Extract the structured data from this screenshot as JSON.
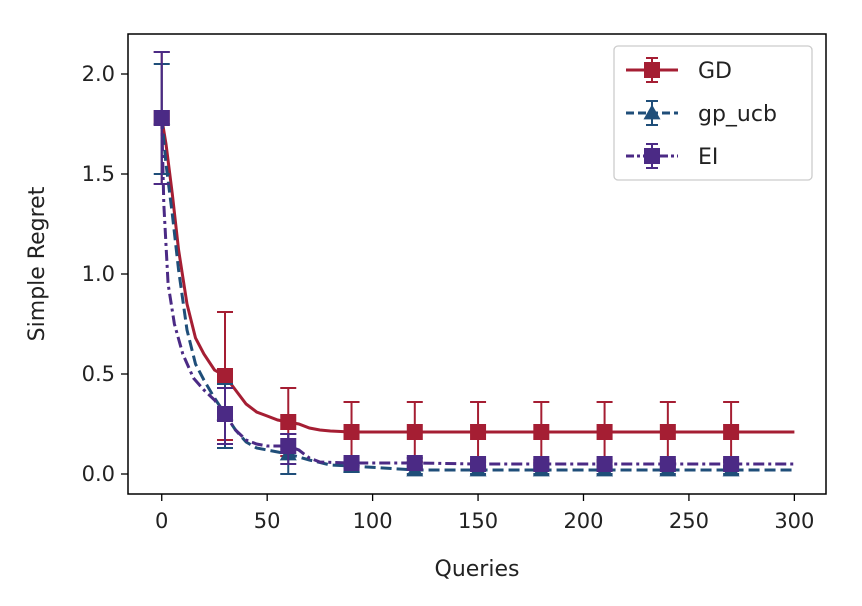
{
  "chart_data": {
    "type": "line",
    "title": "",
    "xlabel": "Queries",
    "ylabel": "Simple Regret",
    "xlim": [
      -16,
      315
    ],
    "ylim": [
      -0.1,
      2.2
    ],
    "xticks": [
      0,
      50,
      100,
      150,
      200,
      250,
      300
    ],
    "yticks": [
      0.0,
      0.5,
      1.0,
      1.5,
      2.0
    ],
    "xtick_labels": [
      "0",
      "50",
      "100",
      "150",
      "200",
      "250",
      "300"
    ],
    "ytick_labels": [
      "0.0",
      "0.5",
      "1.0",
      "1.5",
      "2.0"
    ],
    "grid": false,
    "legend_position": "top-right",
    "series": [
      {
        "name": "GD",
        "color": "#a51e33",
        "dash": "solid",
        "marker": "square",
        "x": [
          0,
          2,
          5,
          8,
          12,
          16,
          20,
          25,
          30,
          35,
          40,
          45,
          50,
          55,
          60,
          65,
          70,
          75,
          80,
          90,
          120,
          150,
          180,
          210,
          240,
          270,
          300
        ],
        "y": [
          1.78,
          1.65,
          1.4,
          1.12,
          0.85,
          0.68,
          0.6,
          0.52,
          0.49,
          0.42,
          0.35,
          0.31,
          0.29,
          0.27,
          0.26,
          0.25,
          0.23,
          0.22,
          0.215,
          0.21,
          0.21,
          0.21,
          0.21,
          0.21,
          0.21,
          0.21,
          0.21
        ],
        "error_x": [
          0,
          30,
          60,
          90,
          120,
          150,
          180,
          210,
          240,
          270
        ],
        "error_y": [
          1.78,
          0.49,
          0.26,
          0.21,
          0.21,
          0.21,
          0.21,
          0.21,
          0.21,
          0.21
        ],
        "error_low": [
          1.45,
          0.17,
          0.09,
          0.06,
          0.06,
          0.06,
          0.06,
          0.06,
          0.06,
          0.06
        ],
        "error_high": [
          2.11,
          0.81,
          0.43,
          0.36,
          0.36,
          0.36,
          0.36,
          0.36,
          0.36,
          0.36
        ]
      },
      {
        "name": "gp_ucb",
        "color": "#1f4e79",
        "dash": "dashed",
        "marker": "triangle",
        "x": [
          0,
          2,
          5,
          8,
          12,
          16,
          20,
          25,
          30,
          35,
          40,
          45,
          50,
          55,
          60,
          70,
          80,
          90,
          120,
          150,
          180,
          210,
          240,
          270,
          300
        ],
        "y": [
          1.78,
          1.55,
          1.3,
          1.02,
          0.72,
          0.55,
          0.47,
          0.38,
          0.3,
          0.22,
          0.16,
          0.13,
          0.12,
          0.11,
          0.1,
          0.07,
          0.045,
          0.04,
          0.02,
          0.02,
          0.02,
          0.02,
          0.02,
          0.02,
          0.02
        ],
        "error_x": [
          0,
          30,
          60,
          90,
          120,
          150,
          180,
          210,
          240,
          270
        ],
        "error_y": [
          1.78,
          0.3,
          0.1,
          0.04,
          0.02,
          0.02,
          0.02,
          0.02,
          0.02,
          0.02
        ],
        "error_low": [
          1.5,
          0.13,
          0.0,
          0.01,
          0.0,
          0.0,
          0.0,
          0.0,
          0.0,
          0.0
        ],
        "error_high": [
          2.05,
          0.45,
          0.2,
          0.07,
          0.04,
          0.04,
          0.04,
          0.04,
          0.04,
          0.04
        ]
      },
      {
        "name": "EI",
        "color": "#4b2a85",
        "dash": "dashdot",
        "marker": "square",
        "x": [
          0,
          1,
          3,
          6,
          10,
          15,
          20,
          25,
          30,
          35,
          40,
          45,
          50,
          55,
          60,
          65,
          70,
          75,
          90,
          120,
          150,
          180,
          210,
          240,
          270,
          300
        ],
        "y": [
          1.78,
          1.35,
          0.95,
          0.75,
          0.6,
          0.48,
          0.42,
          0.37,
          0.3,
          0.22,
          0.17,
          0.15,
          0.14,
          0.14,
          0.14,
          0.12,
          0.08,
          0.06,
          0.055,
          0.055,
          0.05,
          0.05,
          0.05,
          0.05,
          0.05,
          0.05
        ],
        "error_x": [
          0,
          30,
          60,
          90,
          120,
          150,
          180,
          210,
          240,
          270
        ],
        "error_y": [
          1.78,
          0.3,
          0.14,
          0.055,
          0.055,
          0.05,
          0.05,
          0.05,
          0.05,
          0.05
        ],
        "error_low": [
          1.45,
          0.15,
          0.05,
          0.03,
          0.03,
          0.03,
          0.03,
          0.03,
          0.03,
          0.03
        ],
        "error_high": [
          2.11,
          0.43,
          0.2,
          0.08,
          0.08,
          0.07,
          0.07,
          0.07,
          0.07,
          0.07
        ]
      }
    ]
  }
}
